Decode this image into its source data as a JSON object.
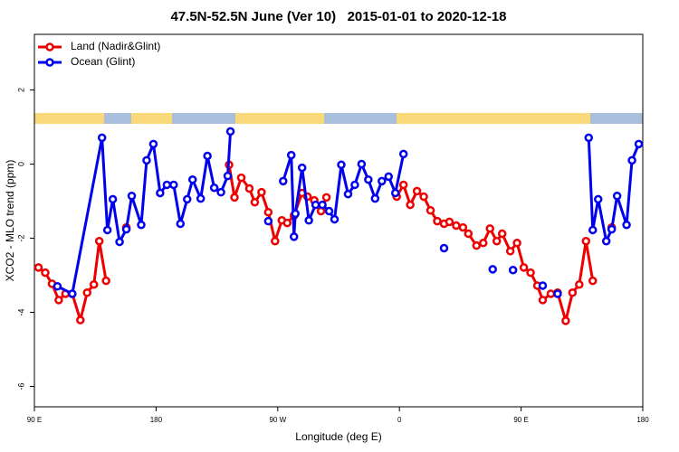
{
  "chart_data": {
    "type": "line",
    "title": "47.5N-52.5N June (Ver 10)   2015-01-01 to 2020-12-18",
    "x_label": "Longitude (deg E)",
    "y_label": "XCO2 - MLO trend (ppm)",
    "xlim": [
      90,
      540
    ],
    "ylim": [
      -6.55,
      3.5
    ],
    "xticks": [
      {
        "value": 90,
        "label": "90 E"
      },
      {
        "value": 180,
        "label": "180"
      },
      {
        "value": 270,
        "label": "90 W"
      },
      {
        "value": 360,
        "label": "0"
      },
      {
        "value": 450,
        "label": "90 E"
      },
      {
        "value": 540,
        "label": "180"
      }
    ],
    "yticks": [
      -6,
      -4,
      -2,
      0,
      2
    ],
    "legend": "top-left",
    "series": [
      {
        "name": "Land (Nadir&Glint)",
        "color": "#ee0000",
        "x": [
          93,
          98,
          103,
          108,
          113,
          118,
          124,
          129,
          134,
          138,
          143,
          null,
          158,
          null,
          234,
          238,
          243,
          249,
          253,
          258,
          263,
          268,
          273,
          277,
          282,
          288,
          292,
          297,
          302,
          306,
          null,
          358,
          363,
          368,
          373,
          378,
          383,
          388,
          393,
          397,
          402,
          407,
          411,
          417,
          422,
          427,
          432,
          436,
          442,
          447,
          452,
          457,
          462,
          466,
          472,
          477,
          483,
          488,
          493,
          498,
          503,
          null,
          517
        ],
        "values": [
          -2.79,
          -2.93,
          -3.23,
          -3.67,
          -3.5,
          -3.5,
          -4.21,
          -3.47,
          -3.25,
          -2.08,
          -3.15,
          null,
          -1.71,
          null,
          -0.02,
          -0.9,
          -0.37,
          -0.66,
          -1.03,
          -0.76,
          -1.3,
          -2.08,
          -1.52,
          -1.59,
          -1.39,
          -0.78,
          -0.88,
          -0.98,
          -1.27,
          -0.9,
          null,
          -0.88,
          -0.56,
          -1.1,
          -0.73,
          -0.88,
          -1.25,
          -1.54,
          -1.61,
          -1.56,
          -1.66,
          -1.71,
          -1.88,
          -2.2,
          -2.13,
          -1.74,
          -2.08,
          -1.88,
          -2.35,
          -2.13,
          -2.79,
          -2.93,
          -3.28,
          -3.67,
          -3.5,
          -3.47,
          -4.23,
          -3.47,
          -3.25,
          -2.08,
          -3.15,
          null,
          -1.71
        ]
      },
      {
        "name": "Ocean (Glint)",
        "color": "#0000ee",
        "x": [
          107,
          118,
          140,
          144,
          148,
          153,
          158,
          162,
          169,
          173,
          178,
          183,
          188,
          193,
          198,
          203,
          207,
          213,
          218,
          223,
          228,
          233,
          235,
          null,
          263,
          null,
          274,
          280,
          282,
          283,
          288,
          293,
          298,
          303,
          308,
          312,
          317,
          322,
          327,
          332,
          337,
          342,
          347,
          352,
          357,
          363,
          null,
          393,
          null,
          429,
          null,
          444,
          null,
          466,
          null,
          477,
          null,
          500,
          503,
          507,
          513,
          517,
          521,
          528,
          532,
          537
        ],
        "values": [
          -3.3,
          -3.5,
          0.71,
          -1.78,
          -0.95,
          -2.1,
          -1.76,
          -0.86,
          -1.64,
          0.1,
          0.54,
          -0.78,
          -0.56,
          -0.56,
          -1.61,
          -0.95,
          -0.42,
          -0.93,
          0.22,
          -0.64,
          -0.76,
          -0.32,
          0.88,
          null,
          -1.54,
          null,
          -0.46,
          0.24,
          -1.96,
          -1.34,
          -0.1,
          -1.52,
          -1.1,
          -1.1,
          -1.27,
          -1.49,
          -0.02,
          -0.81,
          -0.56,
          0,
          -0.42,
          -0.93,
          -0.46,
          -0.34,
          -0.78,
          0.27,
          null,
          -2.27,
          null,
          -2.84,
          null,
          -2.86,
          null,
          -3.28,
          null,
          -3.5,
          null,
          0.71,
          -1.78,
          -0.95,
          -2.08,
          -1.76,
          -0.86,
          -1.64,
          0.1,
          0.54
        ]
      }
    ]
  }
}
